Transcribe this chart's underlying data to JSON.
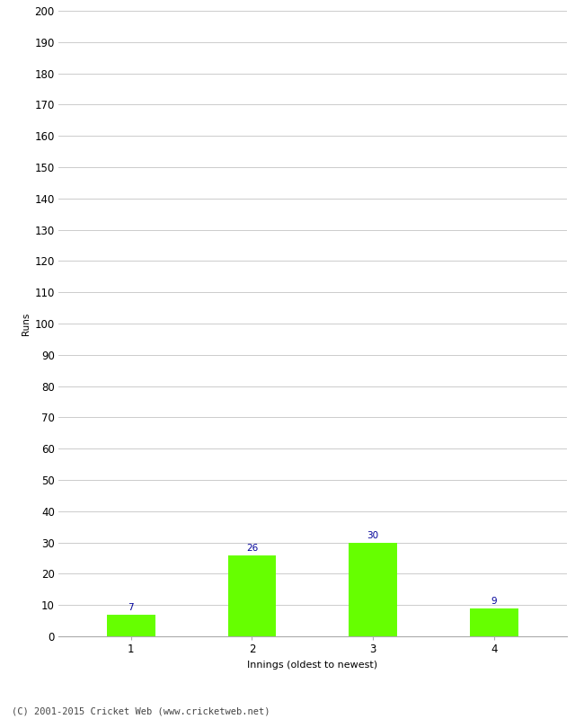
{
  "categories": [
    "1",
    "2",
    "3",
    "4"
  ],
  "values": [
    7,
    26,
    30,
    9
  ],
  "bar_color": "#66ff00",
  "bar_edge_color": "#66ff00",
  "label_color": "#000099",
  "ylabel": "Runs",
  "xlabel": "Innings (oldest to newest)",
  "ylim": [
    0,
    200
  ],
  "yticks": [
    0,
    10,
    20,
    30,
    40,
    50,
    60,
    70,
    80,
    90,
    100,
    110,
    120,
    130,
    140,
    150,
    160,
    170,
    180,
    190,
    200
  ],
  "footer": "(C) 2001-2015 Cricket Web (www.cricketweb.net)",
  "background_color": "#ffffff",
  "grid_color": "#cccccc",
  "label_fontsize": 7.5,
  "axis_fontsize": 8.5,
  "ylabel_fontsize": 7.5,
  "xlabel_fontsize": 8,
  "footer_fontsize": 7.5,
  "bar_width": 0.4
}
